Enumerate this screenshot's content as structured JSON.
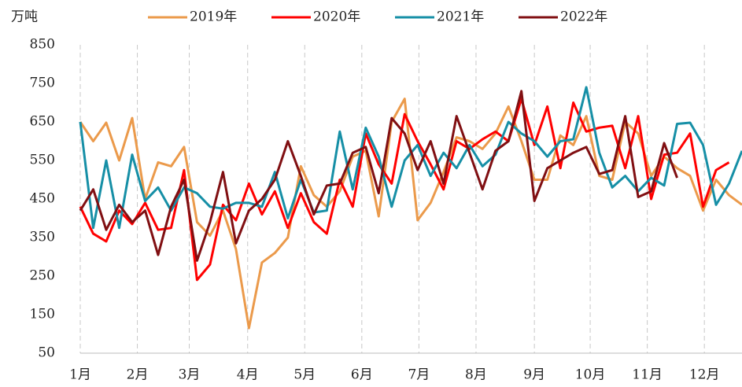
{
  "chart_data": {
    "type": "line",
    "y_label": "万吨",
    "x": [
      1,
      2,
      3,
      4,
      5,
      6,
      7,
      8,
      9,
      10,
      11,
      12,
      13,
      14,
      15,
      16,
      17,
      18,
      19,
      20,
      21,
      22,
      23,
      24,
      25,
      26,
      27,
      28,
      29,
      30,
      31,
      32,
      33,
      34,
      35,
      36,
      37,
      38,
      39,
      40,
      41,
      42,
      43,
      44,
      45,
      46,
      47,
      48,
      49,
      50,
      51,
      52
    ],
    "xlim": [
      1,
      52
    ],
    "xticks": [
      {
        "value": 1,
        "label": "1月"
      },
      {
        "value": 5.4,
        "label": "2月"
      },
      {
        "value": 9.4,
        "label": "3月"
      },
      {
        "value": 13.9,
        "label": "4月"
      },
      {
        "value": 18.3,
        "label": "5月"
      },
      {
        "value": 22.7,
        "label": "6月"
      },
      {
        "value": 27.1,
        "label": "7月"
      },
      {
        "value": 31.5,
        "label": "8月"
      },
      {
        "value": 36.0,
        "label": "9月"
      },
      {
        "value": 40.3,
        "label": "10月"
      },
      {
        "value": 44.7,
        "label": "11月"
      },
      {
        "value": 49.1,
        "label": "12月"
      }
    ],
    "ylim": [
      50,
      850
    ],
    "yticks": [
      50,
      150,
      250,
      350,
      450,
      550,
      650,
      750,
      850
    ],
    "grid": true,
    "series": [
      {
        "name": "2019年",
        "color": "#EB9A4B",
        "values": [
          650,
          600,
          648,
          550,
          660,
          450,
          545,
          535,
          585,
          390,
          355,
          420,
          320,
          115,
          285,
          310,
          350,
          535,
          460,
          430,
          470,
          560,
          575,
          405,
          650,
          710,
          395,
          440,
          520,
          610,
          600,
          580,
          620,
          690,
          600,
          500,
          500,
          615,
          590,
          665,
          510,
          500,
          650,
          620,
          510,
          560,
          530,
          510,
          420,
          500,
          460,
          435
        ]
      },
      {
        "name": "2020年",
        "color": "#FF0000",
        "values": [
          430,
          360,
          340,
          420,
          385,
          440,
          370,
          375,
          525,
          240,
          280,
          435,
          395,
          490,
          410,
          470,
          375,
          465,
          390,
          360,
          500,
          430,
          620,
          540,
          490,
          670,
          600,
          540,
          475,
          600,
          580,
          605,
          625,
          600,
          710,
          590,
          690,
          530,
          700,
          625,
          635,
          640,
          530,
          665,
          450,
          565,
          570,
          620,
          430,
          525,
          545,
          null
        ]
      },
      {
        "name": "2021年",
        "color": "#168FA6",
        "values": [
          650,
          375,
          550,
          375,
          565,
          445,
          480,
          420,
          480,
          465,
          430,
          425,
          440,
          440,
          430,
          520,
          400,
          500,
          415,
          420,
          625,
          475,
          635,
          560,
          430,
          550,
          590,
          510,
          570,
          530,
          590,
          535,
          565,
          650,
          620,
          600,
          560,
          600,
          605,
          740,
          570,
          480,
          510,
          470,
          505,
          485,
          645,
          648,
          590,
          435,
          490,
          575
        ]
      },
      {
        "name": "2022年",
        "color": "#800F12",
        "values": [
          420,
          475,
          370,
          435,
          390,
          420,
          305,
          430,
          500,
          290,
          390,
          520,
          335,
          420,
          450,
          500,
          600,
          510,
          410,
          485,
          490,
          570,
          585,
          465,
          660,
          620,
          525,
          600,
          490,
          665,
          570,
          475,
          575,
          600,
          730,
          445,
          530,
          550,
          570,
          585,
          515,
          525,
          665,
          455,
          470,
          595,
          505,
          null,
          null,
          null,
          null,
          null
        ]
      }
    ]
  }
}
